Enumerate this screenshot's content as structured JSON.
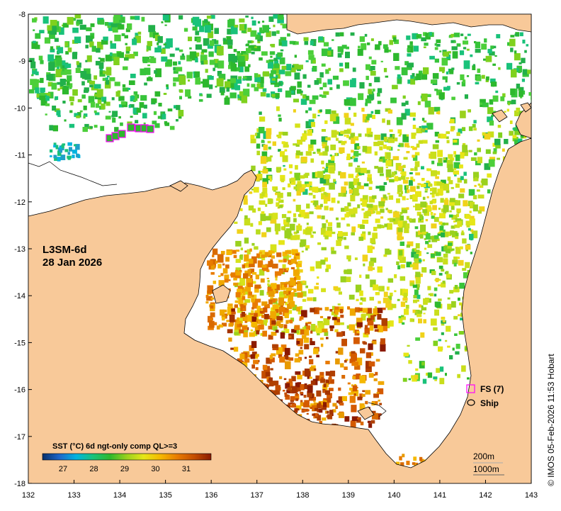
{
  "map": {
    "product_title": "L3SM-6d",
    "date_label": "28 Jan 2026",
    "credit": "© IMOS 05-Feb-2026 11:53 Hobart",
    "lon_ticks": [
      "132",
      "133",
      "134",
      "135",
      "136",
      "137",
      "138",
      "139",
      "140",
      "141",
      "142",
      "143"
    ],
    "lat_ticks": [
      "-8",
      "-9",
      "-10",
      "-11",
      "-12",
      "-13",
      "-14",
      "-15",
      "-16",
      "-17",
      "-18"
    ],
    "colors": {
      "land": "#f8c999",
      "ocean_nodata": "#ffffff",
      "coast": "#000000",
      "fs_marker": "#ff00ff"
    }
  },
  "legend": {
    "fs_label": "FS (7)",
    "ship_label": "Ship"
  },
  "colorbar": {
    "title": "SST (°C) 6d ngt-only comp QL>=3",
    "labels": [
      "27",
      "28",
      "29",
      "30",
      "31"
    ],
    "colors": [
      "#08306b",
      "#1f66c9",
      "#00b4e0",
      "#19c27a",
      "#2db82d",
      "#9ad11e",
      "#e6e617",
      "#f5b800",
      "#e87b00",
      "#c44d00",
      "#8b1a00"
    ]
  },
  "depth_contours": {
    "labels": [
      "200m",
      "1000m"
    ]
  }
}
